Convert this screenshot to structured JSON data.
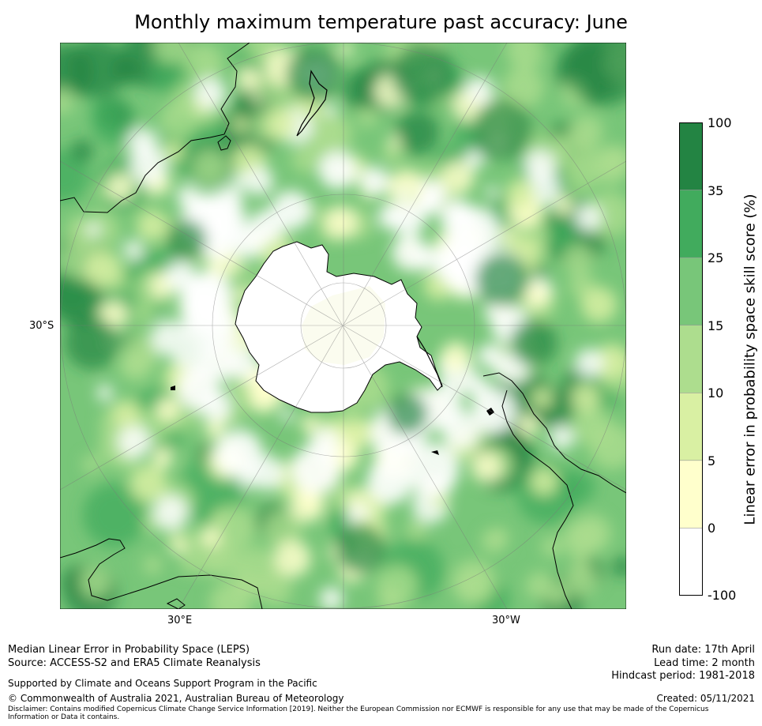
{
  "title": "Monthly maximum temperature past accuracy: June",
  "map": {
    "lat_label": "30°S",
    "lon_labels": [
      "30°E",
      "30°W"
    ],
    "palette": {
      "white": "#ffffff",
      "pale_yellow": "#ffffcc",
      "yellow_green": "#d9f0a3",
      "light_green": "#addd8e",
      "mid_green": "#78c679",
      "green": "#41ab5d",
      "dark_green": "#238443",
      "coast": "#000000"
    }
  },
  "colorbar": {
    "label": "Linear error in probability space skill score (%)",
    "ticks": [
      "100",
      "35",
      "25",
      "15",
      "10",
      "5",
      "0",
      "-100"
    ],
    "colors_top_to_bottom": [
      "#238443",
      "#41ab5d",
      "#78c679",
      "#addd8e",
      "#d9f0a3",
      "#ffffcc",
      "#ffffff"
    ]
  },
  "footer": {
    "left_line1": "Median Linear Error in Probability Space (LEPS)",
    "left_line2": "Source: ACCESS-S2 and ERA5 Climate Reanalysis",
    "supported": "Supported by Climate and Oceans Support Program in the Pacific",
    "copyright": "© Commonwealth of Australia 2021, Australian Bureau of Meteorology",
    "disclaimer_line1": "Disclaimer: Contains modified Copernicus Climate Change Service Information [2019]. Neither the European Commission nor ECMWF is responsible for any use that may be made of the Copernicus",
    "disclaimer_line2": "Information or Data it contains.",
    "run_date": "Run date: 17th April",
    "lead_time": "Lead time: 2 month",
    "hindcast": "Hindcast period: 1981-2018",
    "created": "Created: 05/11/2021"
  }
}
